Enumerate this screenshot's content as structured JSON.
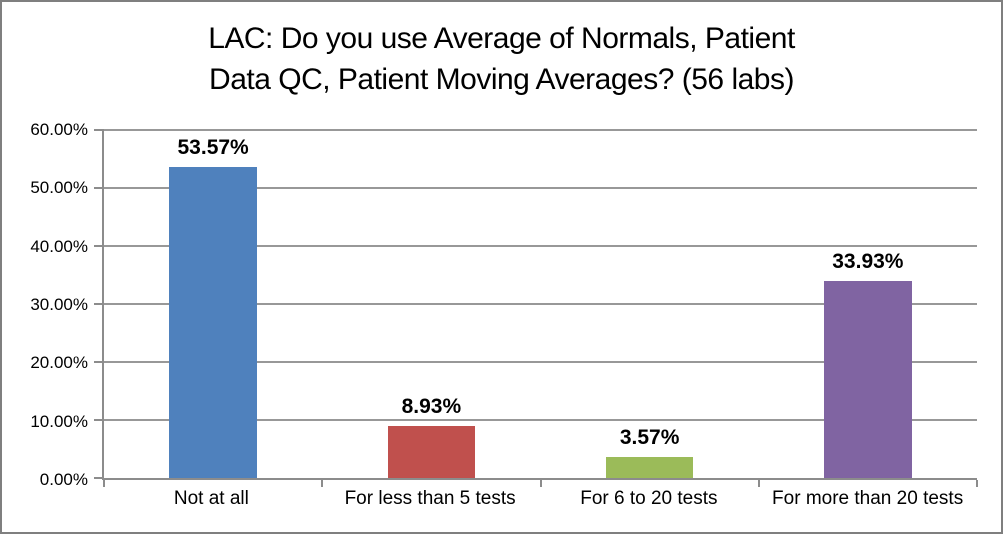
{
  "chart_data": {
    "type": "bar",
    "title": "LAC: Do you use Average of Normals, Patient Data QC, Patient Moving Averages? (56 labs)",
    "title_lines": [
      "LAC: Do you use Average of Normals, Patient",
      "Data QC, Patient Moving Averages? (56 labs)"
    ],
    "categories": [
      "Not at all",
      "For less than 5 tests",
      "For 6 to 20 tests",
      "For more than 20 tests"
    ],
    "values": [
      53.57,
      8.93,
      3.57,
      33.93
    ],
    "value_labels": [
      "53.57%",
      "8.93%",
      "3.57%",
      "33.93%"
    ],
    "bar_colors": [
      "#4F81BD",
      "#C0504D",
      "#9BBB59",
      "#8064A2"
    ],
    "xlabel": "",
    "ylabel": "",
    "ylim": [
      0,
      60
    ],
    "yticks": [
      0,
      10,
      20,
      30,
      40,
      50,
      60
    ],
    "ytick_labels": [
      "0.00%",
      "10.00%",
      "20.00%",
      "30.00%",
      "40.00%",
      "50.00%",
      "60.00%"
    ],
    "grid": true,
    "legend": false,
    "colors": {
      "gridline": "#989898",
      "axis": "#8C8C8C",
      "frame_border": "#7F7F7F",
      "text": "#000000"
    }
  }
}
